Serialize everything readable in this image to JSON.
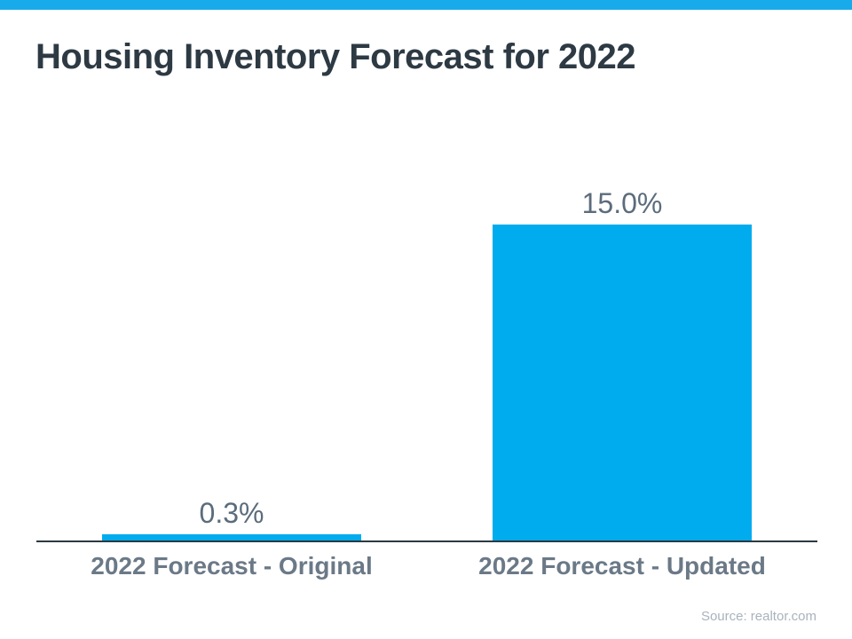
{
  "title": "Housing Inventory Forecast for 2022",
  "source_note": "Source: realtor.com",
  "colors": {
    "top_strip": "#18ABEC",
    "bar": "#00ACEE",
    "title_text": "#2D3A44",
    "value_label_text": "#5B6C7C",
    "category_label_text": "#6B7987",
    "axis_line": "#2C3941",
    "source_text": "#A9B3BC"
  },
  "chart_data": {
    "type": "bar",
    "title": "Housing Inventory Forecast for 2022",
    "categories": [
      "2022 Forecast - Original",
      "2022 Forecast - Updated"
    ],
    "values": [
      0.3,
      15.0
    ],
    "value_labels": [
      "0.3%",
      "15.0%"
    ],
    "xlabel": "",
    "ylabel": "",
    "ylim": [
      0,
      15
    ],
    "grid": false,
    "legend": false,
    "bar_color": "#00ACEE",
    "annotation": "Source: realtor.com"
  }
}
